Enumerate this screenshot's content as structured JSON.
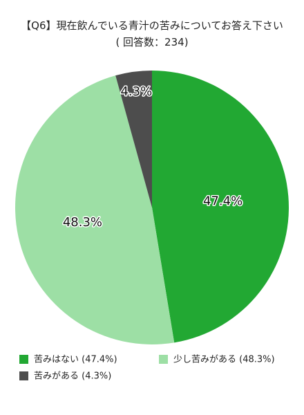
{
  "chart_data": {
    "type": "pie",
    "title": "【Q6】現在飲んでいる青汁の苦みについてお答え下さい",
    "subtitle": "( 回答数：234)",
    "categories": [
      "苦みはない (47.4%)",
      "少し苦みがある (48.3%)",
      "苦みがある (4.3%)"
    ],
    "values": [
      47.4,
      48.3,
      4.3
    ],
    "value_labels": [
      "47.4%",
      "48.3%",
      "4.3%"
    ],
    "colors": [
      "#22a833",
      "#9ddfa5",
      "#4d4d4d"
    ]
  }
}
